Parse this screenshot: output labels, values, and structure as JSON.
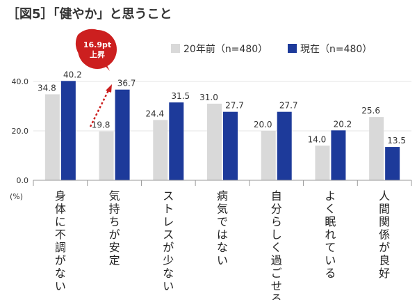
{
  "header": {
    "title": "［図5］「健やか」と思うこと"
  },
  "chart_data": {
    "type": "bar",
    "unit_label": "(%)",
    "categories": [
      "身体に不調がない",
      "気持ちが安定",
      "ストレスが少ない",
      "病気ではない",
      "自分らしく過ごせる",
      "よく眠れている",
      "人間関係が良好"
    ],
    "series": [
      {
        "name": "20年前（n=480）",
        "values": [
          34.8,
          19.8,
          24.4,
          31.0,
          20.0,
          14.0,
          25.6
        ]
      },
      {
        "name": "現在（n=480）",
        "values": [
          40.2,
          36.7,
          31.5,
          27.7,
          27.7,
          20.2,
          13.5
        ]
      }
    ],
    "ylim": [
      0,
      40
    ],
    "yticks": [
      "0.0",
      "20.0",
      "40.0"
    ],
    "callout": {
      "line1": "16.9pt",
      "line2": "上昇"
    },
    "colors": {
      "past": "#d9d9d9",
      "now": "#1d3a9a",
      "callout": "#cc1f1f",
      "axis": "#999999",
      "grid": "#e6e6e6"
    }
  }
}
